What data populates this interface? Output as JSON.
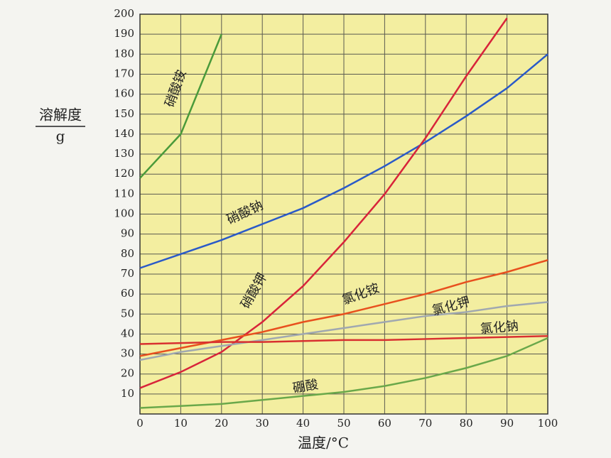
{
  "chart_data": {
    "type": "line",
    "y_label_top": "溶解度",
    "y_label_bottom": "g",
    "x_label": "温度/°C",
    "x": [
      0,
      10,
      20,
      30,
      40,
      50,
      60,
      70,
      80,
      90,
      100
    ],
    "series": [
      {
        "name": "硝酸铵",
        "color": "#4a9a3a",
        "values": [
          118,
          140,
          190,
          null,
          null,
          null,
          null,
          null,
          null,
          null,
          null
        ]
      },
      {
        "name": "硝酸钠",
        "color": "#2a5ac8",
        "values": [
          73,
          80,
          87,
          95,
          103,
          113,
          124,
          136,
          149,
          163,
          180
        ]
      },
      {
        "name": "硝酸钾",
        "color": "#d8243a",
        "values": [
          13,
          21,
          31,
          46,
          64,
          86,
          110,
          138,
          169,
          198,
          null
        ]
      },
      {
        "name": "氯化铵",
        "color": "#e8501e",
        "values": [
          29,
          33,
          37,
          41,
          46,
          50,
          55,
          60,
          66,
          71,
          77
        ]
      },
      {
        "name": "氯化钾",
        "color": "#a0a8b0",
        "values": [
          27,
          31,
          34,
          37,
          40,
          43,
          46,
          49,
          51,
          54,
          56
        ]
      },
      {
        "name": "氯化钠",
        "color": "#d83030",
        "values": [
          35,
          35.5,
          36,
          36,
          36.5,
          37,
          37,
          37.5,
          38,
          38.5,
          39
        ]
      },
      {
        "name": "硼酸",
        "color": "#6aa84a",
        "values": [
          3,
          4,
          5,
          7,
          9,
          11,
          14,
          18,
          23,
          29,
          38
        ]
      }
    ],
    "xlim": [
      0,
      100
    ],
    "xticks": [
      0,
      10,
      20,
      30,
      40,
      50,
      60,
      70,
      80,
      90,
      100
    ],
    "ylim": [
      0,
      200
    ],
    "yticks": [
      10,
      20,
      30,
      40,
      50,
      60,
      70,
      80,
      90,
      100,
      110,
      120,
      130,
      140,
      150,
      160,
      170,
      180,
      190,
      200
    ],
    "grid": true
  }
}
